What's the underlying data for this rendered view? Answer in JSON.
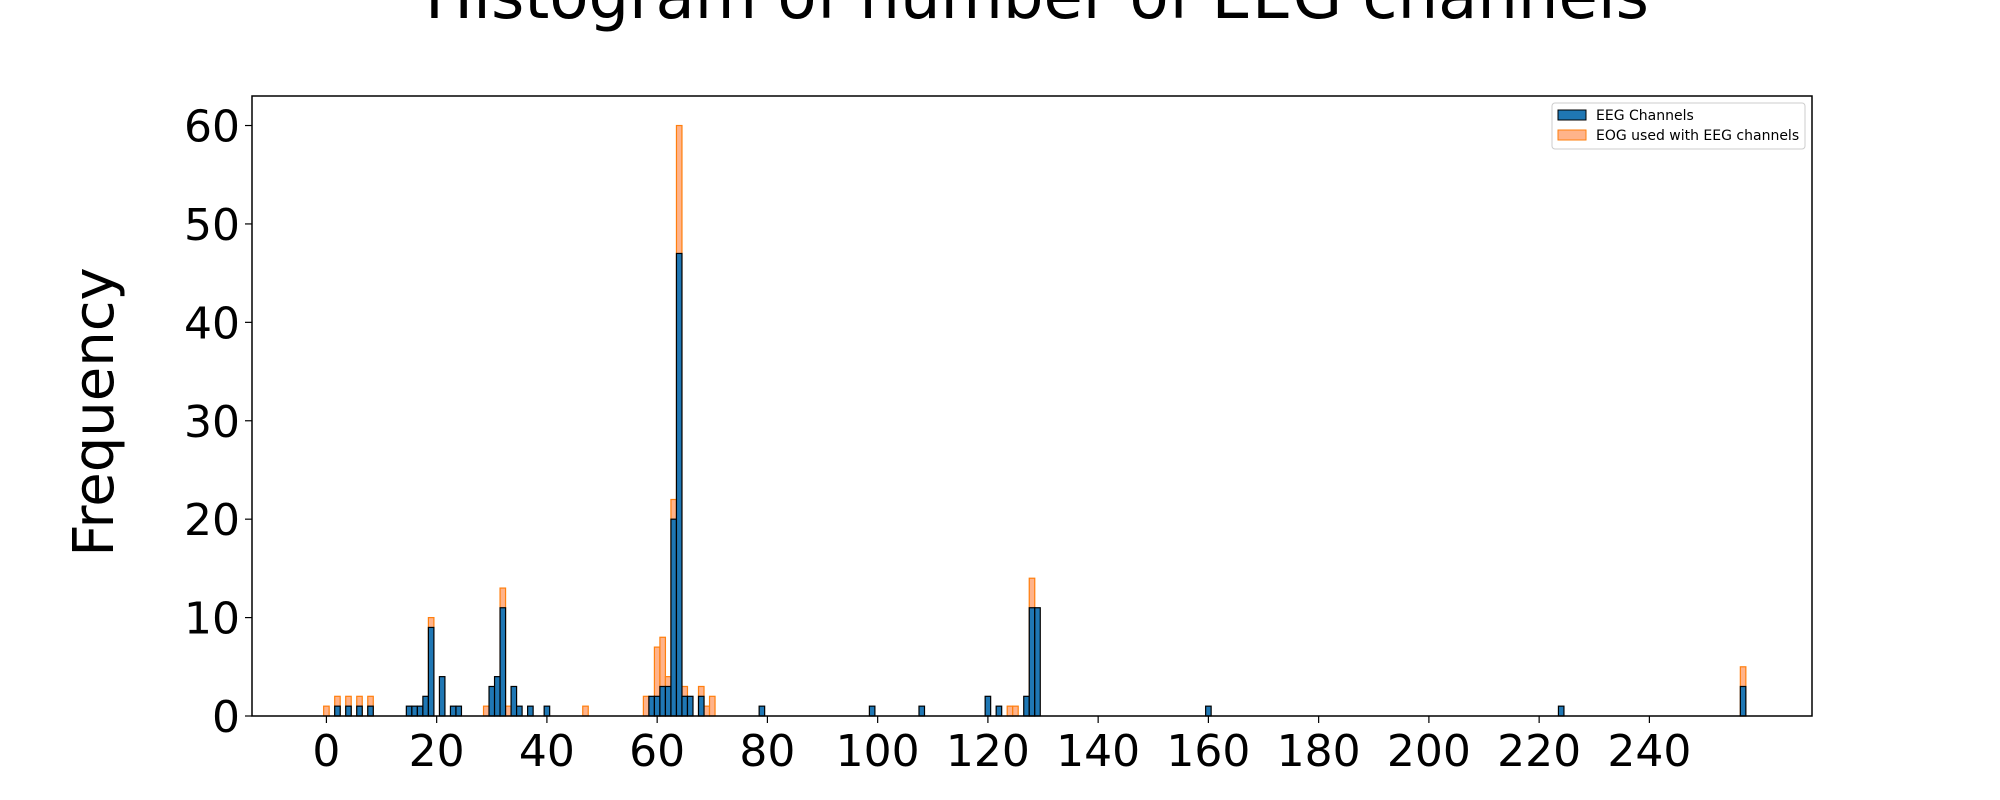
{
  "chart_data": {
    "type": "bar",
    "title": "Histogram of number of EEG channels",
    "xlabel": "",
    "ylabel": "Frequency",
    "xlim": [
      -13,
      270
    ],
    "ylim": [
      0,
      63
    ],
    "bin_width": 1,
    "x_ticks": [
      0,
      20,
      40,
      60,
      80,
      100,
      120,
      140,
      160,
      180,
      200,
      220,
      240
    ],
    "y_ticks": [
      0,
      10,
      20,
      30,
      40,
      50,
      60
    ],
    "grid": false,
    "legend_position": "top-right",
    "colors": {
      "eeg_fill": "#1f77b4",
      "eeg_edge": "#000000",
      "eog_fill": "#ffb38a",
      "eog_edge": "#ff7f0e"
    },
    "series": [
      {
        "name": "EOG used with EEG channels",
        "x": [
          0,
          2,
          4,
          6,
          8,
          19,
          29,
          32,
          33,
          47,
          58,
          60,
          61,
          62,
          63,
          64,
          65,
          68,
          69,
          70,
          124,
          125,
          128,
          257
        ],
        "values": [
          1,
          2,
          2,
          2,
          2,
          10,
          1,
          13,
          1,
          1,
          2,
          7,
          8,
          4,
          22,
          60,
          3,
          3,
          1,
          2,
          1,
          1,
          14,
          5
        ]
      },
      {
        "name": "EEG Channels",
        "x": [
          2,
          4,
          6,
          8,
          15,
          16,
          17,
          18,
          19,
          21,
          23,
          24,
          30,
          31,
          32,
          34,
          35,
          37,
          40,
          59,
          60,
          61,
          62,
          63,
          64,
          65,
          66,
          68,
          79,
          99,
          108,
          120,
          122,
          127,
          128,
          129,
          160,
          224,
          257
        ],
        "values": [
          1,
          1,
          1,
          1,
          1,
          1,
          1,
          2,
          9,
          4,
          1,
          1,
          3,
          4,
          11,
          3,
          1,
          1,
          1,
          2,
          2,
          3,
          3,
          20,
          47,
          2,
          2,
          2,
          1,
          1,
          1,
          2,
          1,
          2,
          11,
          11,
          1,
          1,
          3
        ]
      }
    ]
  }
}
